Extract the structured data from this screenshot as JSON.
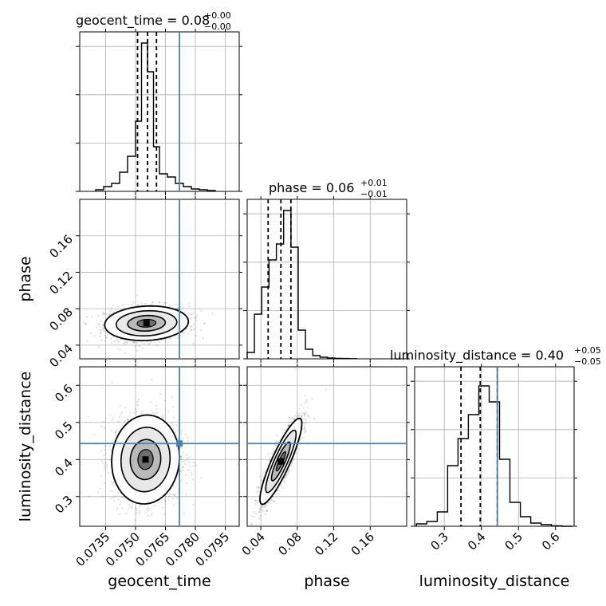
{
  "chart_data": {
    "type": "corner",
    "parameters": [
      "geocent_time",
      "phase",
      "luminosity_distance"
    ],
    "truths": {
      "geocent_time": 0.0772,
      "phase": null,
      "luminosity_distance": 0.443
    },
    "truth_color": "#4682b4",
    "titles": [
      {
        "main": "geocent_time = 0.08",
        "plus": "+0.00",
        "minus": "−0.00"
      },
      {
        "main": "phase = 0.06",
        "plus": "+0.01",
        "minus": "−0.01"
      },
      {
        "main": "luminosity_distance = 0.40",
        "plus": "+0.05",
        "minus": "−0.05"
      }
    ],
    "axis_ranges": {
      "geocent_time": [
        0.0722,
        0.0802
      ],
      "phase": [
        0.025,
        0.2
      ],
      "luminosity_distance": [
        0.22,
        0.65
      ]
    },
    "ticks": {
      "geocent_time": [
        "0.0735",
        "0.0750",
        "0.0765",
        "0.0780",
        "0.0795"
      ],
      "phase": [
        "0.04",
        "0.08",
        "0.12",
        "0.16"
      ],
      "luminosity_distance": [
        "0.3",
        "0.4",
        "0.5",
        "0.6"
      ],
      "ld_row_ticks": [
        "0.3",
        "0.4",
        "0.5",
        "0.6"
      ]
    },
    "grid": true,
    "quantiles": {
      "geocent_time": [
        0.0751,
        0.0756,
        0.07605
      ],
      "phase": [
        0.048,
        0.062,
        0.073
      ],
      "luminosity_distance": [
        0.345,
        0.397,
        0.443
      ]
    },
    "hist_geocent_time": {
      "edges": [
        0.073,
        0.0734,
        0.0738,
        0.0742,
        0.0746,
        0.075,
        0.0753,
        0.0756,
        0.0759,
        0.0762,
        0.0766,
        0.077,
        0.0774,
        0.0778,
        0.0782,
        0.0786,
        0.079
      ],
      "values": [
        0.01,
        0.03,
        0.05,
        0.12,
        0.22,
        0.44,
        0.93,
        0.75,
        0.28,
        0.11,
        0.09,
        0.05,
        0.03,
        0.015,
        0.01,
        0.005
      ]
    },
    "hist_phase": {
      "edges": [
        0.025,
        0.033,
        0.041,
        0.049,
        0.057,
        0.065,
        0.073,
        0.081,
        0.089,
        0.097,
        0.105,
        0.113,
        0.121,
        0.129,
        0.137,
        0.145
      ],
      "values": [
        0.04,
        0.28,
        0.45,
        0.62,
        0.72,
        0.93,
        0.7,
        0.18,
        0.06,
        0.02,
        0.01,
        0.005,
        0.003,
        0.002,
        0.001
      ]
    },
    "hist_luminosity_distance": {
      "edges": [
        0.225,
        0.253,
        0.281,
        0.309,
        0.337,
        0.365,
        0.393,
        0.421,
        0.449,
        0.477,
        0.505,
        0.533,
        0.561,
        0.589,
        0.617,
        0.645
      ],
      "values": [
        0.015,
        0.03,
        0.09,
        0.38,
        0.55,
        0.7,
        0.88,
        0.78,
        0.42,
        0.15,
        0.06,
        0.02,
        0.01,
        0.003,
        0.0
      ]
    },
    "density_2d": {
      "geocent_time_vs_phase": {
        "center": [
          0.07555,
          0.064
        ],
        "spread": [
          0.00105,
          0.0095
        ],
        "correlation": 0.1,
        "count": 1200
      },
      "geocent_time_vs_luminosity_distance": {
        "center": [
          0.0755,
          0.4
        ],
        "spread": [
          0.00085,
          0.06
        ],
        "correlation": 0.05,
        "count": 1500
      },
      "phase_vs_luminosity_distance": {
        "center": [
          0.062,
          0.395
        ],
        "spread": [
          0.0115,
          0.058
        ],
        "correlation": 0.88,
        "count": 1400
      }
    }
  }
}
